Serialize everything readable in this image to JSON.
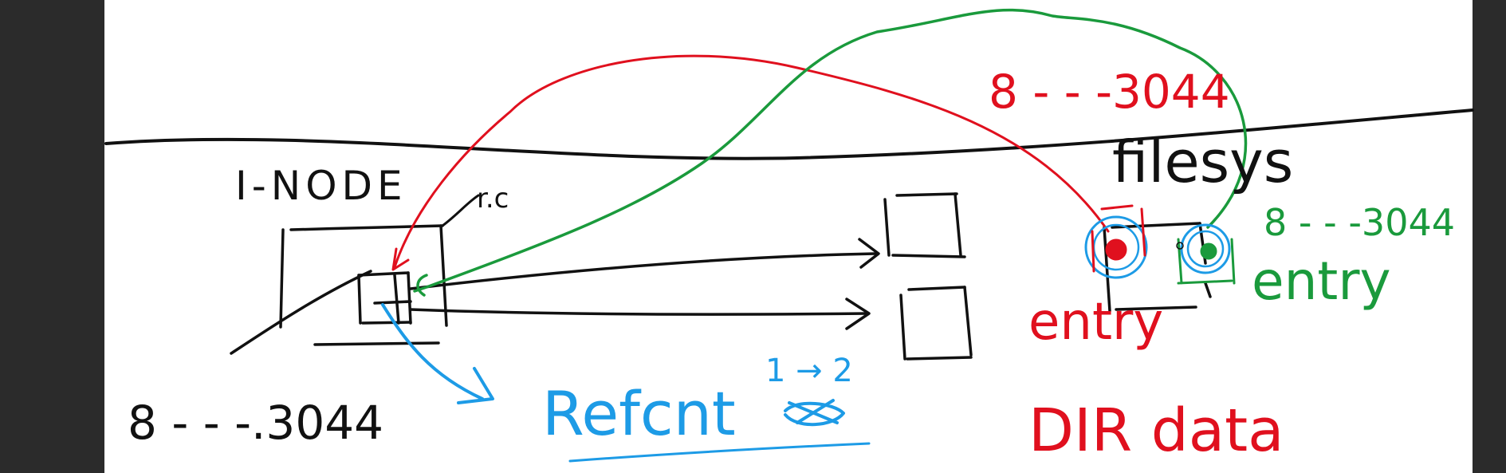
{
  "canvas": {
    "background": "#ffffff",
    "frame": "#2b2b2b"
  },
  "colors": {
    "black": "#111111",
    "red": "#e0101e",
    "green": "#1a9a3c",
    "blue": "#1d9be6"
  },
  "labels": {
    "inode": "I-NODE",
    "rc": "r.c",
    "range_bottom": "8 - - -.3044",
    "refcnt": "Refcnt",
    "refcnt_change": "1 → 2",
    "filesys": "filesys",
    "red_range": "8 - - -3044",
    "green_range": "8 - - -3044",
    "entry_red": "entry",
    "entry_green": "entry",
    "dir_data": "DIR data"
  }
}
